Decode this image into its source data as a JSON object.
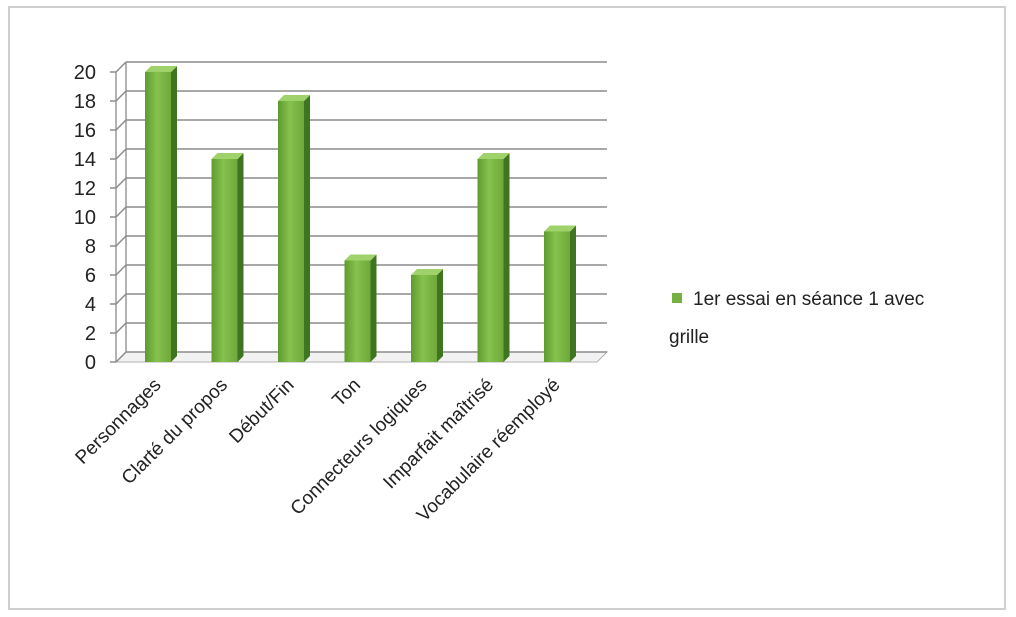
{
  "chart_data": {
    "type": "bar",
    "title": "",
    "xlabel": "",
    "ylabel": "",
    "categories": [
      "Personnages",
      "Clarté du propos",
      "Début/Fin",
      "Ton",
      "Connecteurs logiques",
      "Imparfait maîtrisé",
      "Vocabulaire réemployé"
    ],
    "series": [
      {
        "name": "1er essai en séance 1 avec grille",
        "color": "#76b043",
        "values": [
          20,
          14,
          18,
          7,
          6,
          14,
          9
        ]
      }
    ],
    "yticks": [
      0,
      2,
      4,
      6,
      8,
      10,
      12,
      14,
      16,
      18,
      20
    ],
    "ylim": [
      0,
      20
    ],
    "grid": true,
    "legend_position": "right"
  },
  "legend": {
    "line1": "1er essai en séance 1 avec",
    "line2": "grille"
  }
}
